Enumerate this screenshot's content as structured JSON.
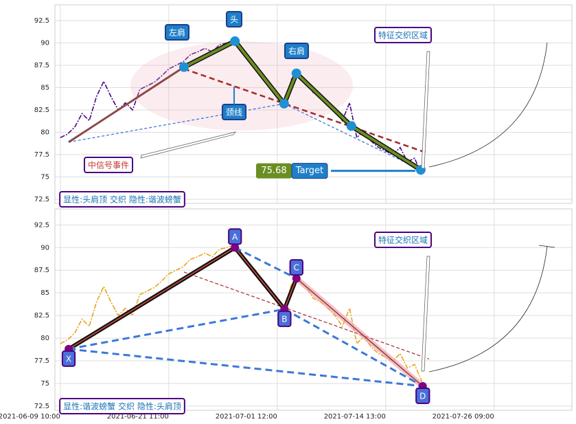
{
  "chart_data": [
    {
      "type": "pattern-line",
      "x": [
        0,
        4,
        8,
        12,
        16,
        20,
        24,
        28,
        32,
        36,
        40,
        44,
        48,
        52,
        56,
        60,
        64,
        68,
        72,
        76,
        80,
        84,
        88,
        92,
        96,
        100,
        104,
        108,
        112,
        116,
        120,
        124,
        128,
        132,
        136,
        140,
        144,
        148,
        152,
        156,
        160,
        164,
        168,
        172,
        176,
        180,
        184,
        188,
        192,
        196,
        200
      ],
      "series": [
        {
          "color": "#4b0082",
          "values": [
            79.4,
            79.8,
            80.6,
            82.1,
            81.3,
            84.0,
            85.7,
            84.0,
            82.5,
            83.3,
            82.5,
            84.8,
            85.2,
            85.6,
            86.3,
            87.1,
            87.5,
            87.9,
            88.7,
            89.0,
            89.4,
            89.0,
            89.8,
            90.0,
            90.3,
            89.4,
            88.3,
            87.5,
            86.3,
            85.2,
            84.0,
            83.3,
            86.0,
            86.5,
            85.6,
            84.4,
            84.0,
            83.3,
            82.5,
            81.3,
            83.3,
            79.4,
            80.2,
            79.0,
            78.3,
            77.9,
            77.5,
            78.3,
            76.7,
            77.1,
            75.2
          ]
        }
      ],
      "points": [
        {
          "x": 4.6,
          "y": 78.9
        },
        {
          "x": 68.4,
          "y": 87.3
        },
        {
          "x": 96.6,
          "y": 90.2
        },
        {
          "x": 123.8,
          "y": 83.2
        },
        {
          "x": 130.6,
          "y": 86.6
        },
        {
          "x": 161,
          "y": 80.7
        },
        {
          "x": 199.4,
          "y": 75.8
        }
      ],
      "neckline": {
        "x": [
          68.4,
          202.8
        ],
        "y": [
          87.1,
          77.7
        ]
      },
      "annotations": [
        "左肩",
        "头",
        "右肩",
        "颈线",
        "特征交织区域",
        "中信号事件"
      ],
      "target_value": 75.68,
      "target_label": "Target",
      "caption": "显性:头肩顶 交织 隐性:谐波螃蟹",
      "xlim": [
        -3,
        283
      ],
      "xticks": [
        0,
        60,
        120,
        180,
        240
      ],
      "ylim": [
        72.04,
        94.27
      ],
      "yticks": [
        72.5,
        75.0,
        77.5,
        80.0,
        82.5,
        85.0,
        87.5,
        90.0,
        92.5
      ],
      "grid": true
    },
    {
      "type": "harmonic",
      "x": [
        0,
        4,
        8,
        12,
        16,
        20,
        24,
        28,
        32,
        36,
        40,
        44,
        48,
        52,
        56,
        60,
        64,
        68,
        72,
        76,
        80,
        84,
        88,
        92,
        96,
        100,
        104,
        108,
        112,
        116,
        120,
        124,
        128,
        132,
        136,
        140,
        144,
        148,
        152,
        156,
        160,
        164,
        168,
        172,
        176,
        180,
        184,
        188,
        192,
        196,
        200
      ],
      "series": [
        {
          "color": "#e8a317",
          "values": [
            79.4,
            79.8,
            80.6,
            82.1,
            81.3,
            84.0,
            85.7,
            84.0,
            82.5,
            83.3,
            82.5,
            84.8,
            85.2,
            85.6,
            86.3,
            87.1,
            87.5,
            87.9,
            88.7,
            89.0,
            89.4,
            89.0,
            89.8,
            90.0,
            90.3,
            89.4,
            88.3,
            87.5,
            86.3,
            85.2,
            84.0,
            83.3,
            86.0,
            86.5,
            85.6,
            84.4,
            84.0,
            83.3,
            82.5,
            81.3,
            83.3,
            79.4,
            80.2,
            79.0,
            78.3,
            77.9,
            77.5,
            78.3,
            76.7,
            77.1,
            75.2
          ]
        }
      ],
      "points": [
        {
          "name": "X",
          "x": 4.6,
          "y": 78.8
        },
        {
          "name": "A",
          "x": 96.6,
          "y": 90.0
        },
        {
          "name": "B",
          "x": 124,
          "y": 83.2
        },
        {
          "name": "C",
          "x": 130.6,
          "y": 86.6
        },
        {
          "name": "D",
          "x": 200.5,
          "y": 74.7
        }
      ],
      "neckline": {
        "x": [
          68.4,
          204
        ],
        "y": [
          87.3,
          77.7
        ]
      },
      "annotations": [
        "特征交织区域"
      ],
      "caption": "显性:谐波螃蟹 交织 隐性:头肩顶",
      "xlim": [
        -3,
        283
      ],
      "xticks": [
        {
          "value": 0,
          "label": "2021-06-09 10:00"
        },
        {
          "value": 60,
          "label": "2021-06-21 11:00"
        },
        {
          "value": 120,
          "label": "2021-07-01 12:00"
        },
        {
          "value": 180,
          "label": "2021-07-14 13:00"
        },
        {
          "value": 240,
          "label": "2021-07-26 09:00"
        }
      ],
      "ylim": [
        72.04,
        94.27
      ],
      "yticks": [
        72.5,
        75.0,
        77.5,
        80.0,
        82.5,
        85.0,
        87.5,
        90.0,
        92.5
      ],
      "grid": true
    }
  ]
}
